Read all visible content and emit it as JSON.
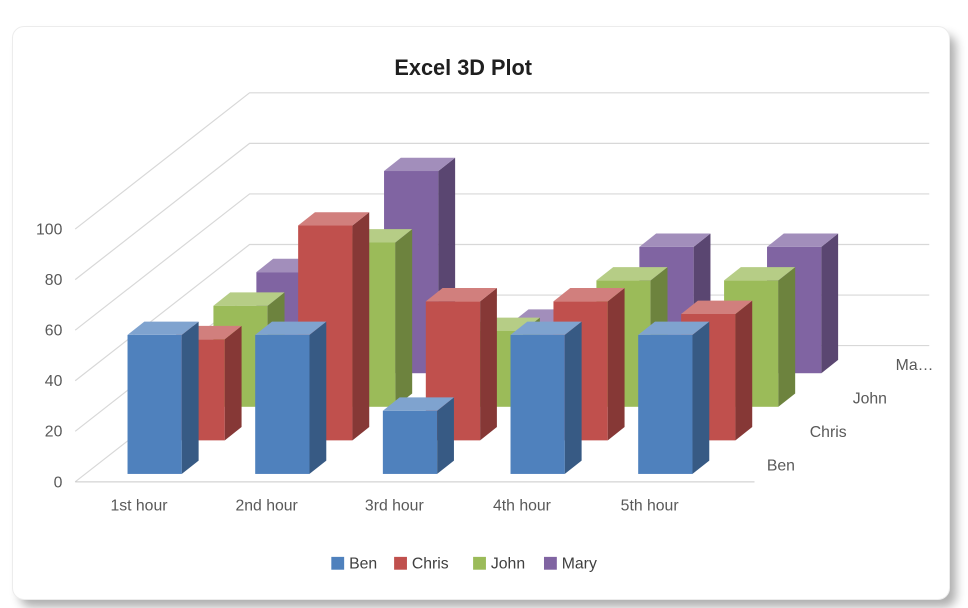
{
  "chart_data": {
    "type": "bar",
    "variant": "3d-column",
    "title": "Excel 3D Plot",
    "categories": [
      "1st hour",
      "2nd hour",
      "3rd hour",
      "4th hour",
      "5th hour"
    ],
    "series": [
      {
        "name": "Ben",
        "color": "#4F81BD",
        "values": [
          55,
          55,
          25,
          55,
          55
        ]
      },
      {
        "name": "Chris",
        "color": "#C0504D",
        "values": [
          40,
          85,
          55,
          55,
          50
        ]
      },
      {
        "name": "John",
        "color": "#9BBB59",
        "values": [
          40,
          65,
          30,
          50,
          50
        ]
      },
      {
        "name": "Mary",
        "color": "#8064A2",
        "values": [
          40,
          80,
          20,
          50,
          50
        ]
      }
    ],
    "value_axis": {
      "min": 0,
      "max": 100,
      "step": 20,
      "tick_labels": [
        "0",
        "20",
        "40",
        "60",
        "80",
        "100"
      ]
    },
    "depth_axis_labels": [
      "Ben",
      "Chris",
      "John",
      "Ma…"
    ],
    "legend": {
      "position": "bottom",
      "entries": [
        "Ben",
        "Chris",
        "John",
        "Mary"
      ]
    },
    "grid": true,
    "colors": {
      "gridline": "#D8D8D8",
      "axis_line": "#C9C9C9",
      "axis_text": "#595959",
      "title_text": "#1F1F1F",
      "legend_text": "#404040",
      "card_background": "#FFFFFF"
    }
  }
}
